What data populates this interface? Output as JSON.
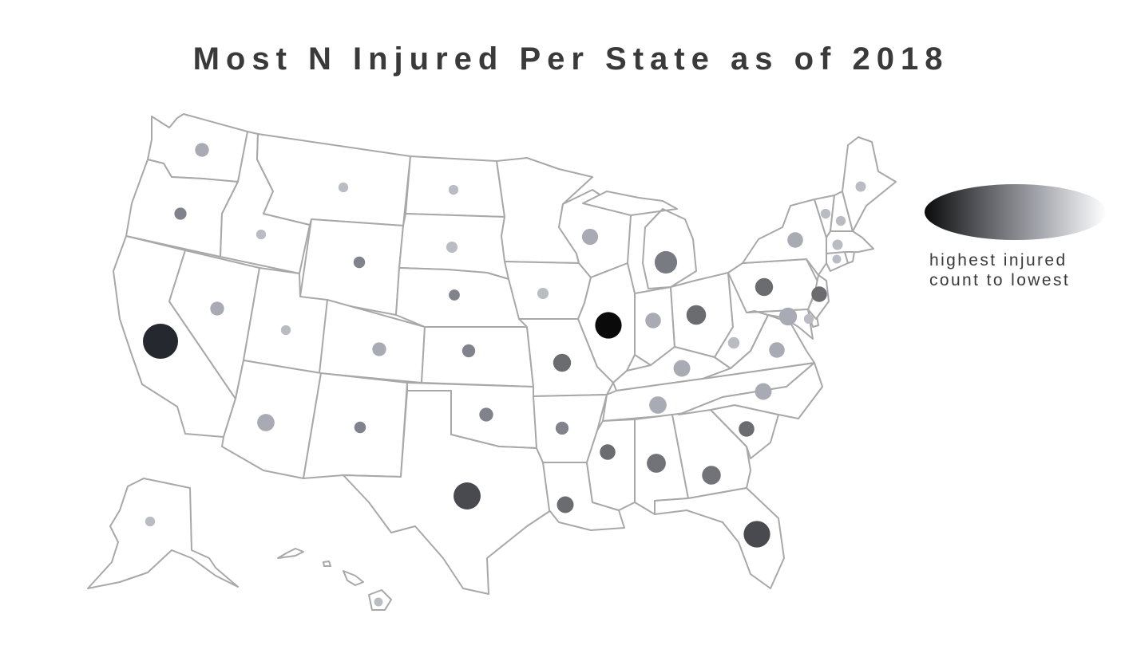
{
  "title": "Most N Injured Per State as of 2018",
  "legend": {
    "line1": "highest injured",
    "line2": "count to lowest",
    "gradient_colors": [
      "#0b0b0b",
      "#55575c",
      "#a9abb2",
      "#ffffff"
    ]
  },
  "colors": {
    "state_fill": "#ffffff",
    "state_border": "#a8a8a8",
    "text": "#3a3a3a"
  },
  "markers": [
    {
      "state": "WA",
      "rank": 0.3,
      "size": 0.26
    },
    {
      "state": "OR",
      "rank": 0.55,
      "size": 0.2
    },
    {
      "state": "CA",
      "rank": 0.97,
      "size": 1.0
    },
    {
      "state": "NV",
      "rank": 0.3,
      "size": 0.26
    },
    {
      "state": "ID",
      "rank": 0.15,
      "size": 0.12
    },
    {
      "state": "MT",
      "rank": 0.15,
      "size": 0.12
    },
    {
      "state": "WY",
      "rank": 0.55,
      "size": 0.18
    },
    {
      "state": "UT",
      "rank": 0.15,
      "size": 0.12
    },
    {
      "state": "AZ",
      "rank": 0.3,
      "size": 0.38
    },
    {
      "state": "CO",
      "rank": 0.3,
      "size": 0.26
    },
    {
      "state": "NM",
      "rank": 0.55,
      "size": 0.18
    },
    {
      "state": "ND",
      "rank": 0.15,
      "size": 0.12
    },
    {
      "state": "SD",
      "rank": 0.15,
      "size": 0.17
    },
    {
      "state": "NE",
      "rank": 0.55,
      "size": 0.16
    },
    {
      "state": "KS",
      "rank": 0.55,
      "size": 0.23
    },
    {
      "state": "OK",
      "rank": 0.55,
      "size": 0.26
    },
    {
      "state": "TX",
      "rank": 0.88,
      "size": 0.72
    },
    {
      "state": "IA",
      "rank": 0.15,
      "size": 0.17
    },
    {
      "state": "MO",
      "rank": 0.7,
      "size": 0.4
    },
    {
      "state": "AR",
      "rank": 0.55,
      "size": 0.23
    },
    {
      "state": "LA",
      "rank": 0.7,
      "size": 0.36
    },
    {
      "state": "WI",
      "rank": 0.3,
      "size": 0.34
    },
    {
      "state": "IL",
      "rank": 1.0,
      "size": 0.7
    },
    {
      "state": "MI",
      "rank": 0.6,
      "size": 0.56
    },
    {
      "state": "IN",
      "rank": 0.3,
      "size": 0.32
    },
    {
      "state": "OH",
      "rank": 0.7,
      "size": 0.46
    },
    {
      "state": "KY",
      "rank": 0.3,
      "size": 0.36
    },
    {
      "state": "TN",
      "rank": 0.3,
      "size": 0.38
    },
    {
      "state": "MS",
      "rank": 0.7,
      "size": 0.32
    },
    {
      "state": "AL",
      "rank": 0.65,
      "size": 0.44
    },
    {
      "state": "GA",
      "rank": 0.65,
      "size": 0.43
    },
    {
      "state": "FL",
      "rank": 0.88,
      "size": 0.7
    },
    {
      "state": "SC",
      "rank": 0.7,
      "size": 0.32
    },
    {
      "state": "NC",
      "rank": 0.3,
      "size": 0.36
    },
    {
      "state": "VA",
      "rank": 0.3,
      "size": 0.32
    },
    {
      "state": "WV",
      "rank": 0.15,
      "size": 0.18
    },
    {
      "state": "PA",
      "rank": 0.7,
      "size": 0.4
    },
    {
      "state": "NY",
      "rank": 0.3,
      "size": 0.32
    },
    {
      "state": "NJ",
      "rank": 0.7,
      "size": 0.32
    },
    {
      "state": "MD",
      "rank": 0.3,
      "size": 0.4
    },
    {
      "state": "DE",
      "rank": 0.15,
      "size": 0.12
    },
    {
      "state": "ME",
      "rank": 0.15,
      "size": 0.14
    },
    {
      "state": "NH",
      "rank": 0.15,
      "size": 0.12
    },
    {
      "state": "VT",
      "rank": 0.15,
      "size": 0.12
    },
    {
      "state": "MA",
      "rank": 0.15,
      "size": 0.14
    },
    {
      "state": "CT",
      "rank": 0.15,
      "size": 0.08
    },
    {
      "state": "AK",
      "rank": 0.15,
      "size": 0.12
    },
    {
      "state": "HI",
      "rank": 0.15,
      "size": 0.08
    }
  ]
}
